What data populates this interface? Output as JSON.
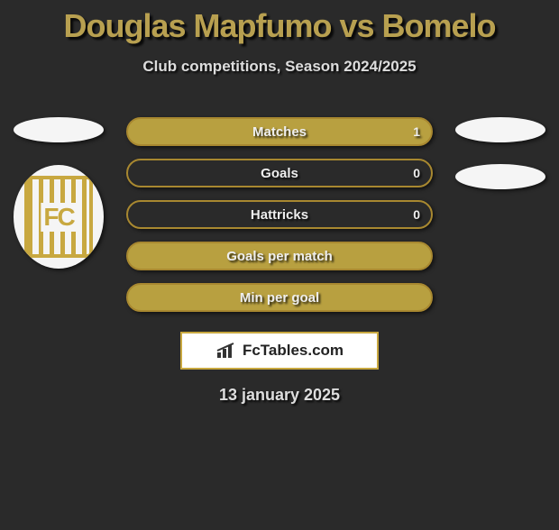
{
  "title": "Douglas Mapfumo vs Bomelo",
  "subtitle": "Club competitions, Season 2024/2025",
  "date": "13 january 2025",
  "colors": {
    "accent": "#b8a050",
    "bar_border": "#a88830",
    "bar_fill": "#b8a040",
    "background": "#2a2a2a",
    "ellipse": "#f5f5f5",
    "text_light": "#ddd"
  },
  "crest": {
    "letters": "FC",
    "stripe_color": "#c8a840"
  },
  "stats": [
    {
      "label": "Matches",
      "value": "1",
      "filled": true,
      "has_value": true
    },
    {
      "label": "Goals",
      "value": "0",
      "filled": false,
      "has_value": true
    },
    {
      "label": "Hattricks",
      "value": "0",
      "filled": false,
      "has_value": true
    },
    {
      "label": "Goals per match",
      "value": "",
      "filled": true,
      "has_value": false
    },
    {
      "label": "Min per goal",
      "value": "",
      "filled": true,
      "has_value": false
    }
  ],
  "fctables": {
    "label": "FcTables.com"
  }
}
